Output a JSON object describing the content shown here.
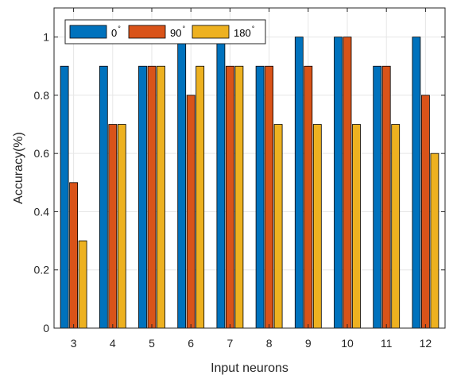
{
  "chart_data": {
    "type": "bar",
    "categories": [
      "3",
      "4",
      "5",
      "6",
      "7",
      "8",
      "9",
      "10",
      "11",
      "12"
    ],
    "series": [
      {
        "name": "0",
        "name_sup": "°",
        "color": "#0072BD",
        "values": [
          0.9,
          0.9,
          0.9,
          1.0,
          1.0,
          0.9,
          1.0,
          1.0,
          0.9,
          1.0
        ]
      },
      {
        "name": "90",
        "name_sup": "°",
        "color": "#D95319",
        "values": [
          0.5,
          0.7,
          0.9,
          0.8,
          0.9,
          0.9,
          0.9,
          1.0,
          0.9,
          0.8
        ]
      },
      {
        "name": "180",
        "name_sup": "°",
        "color": "#EDB120",
        "values": [
          0.3,
          0.7,
          0.9,
          0.9,
          0.9,
          0.7,
          0.7,
          0.7,
          0.7,
          0.6
        ]
      }
    ],
    "xlabel": "Input neurons",
    "ylabel": "Accuracy(%)",
    "ylim": [
      0,
      1.1
    ],
    "yticks": [
      0,
      0.2,
      0.4,
      0.6,
      0.8,
      1
    ],
    "ytick_labels": [
      "0",
      "0.2",
      "0.4",
      "0.6",
      "0.8",
      "1"
    ],
    "grid": true,
    "legend_position": "top-left",
    "legend_orientation": "horizontal"
  }
}
